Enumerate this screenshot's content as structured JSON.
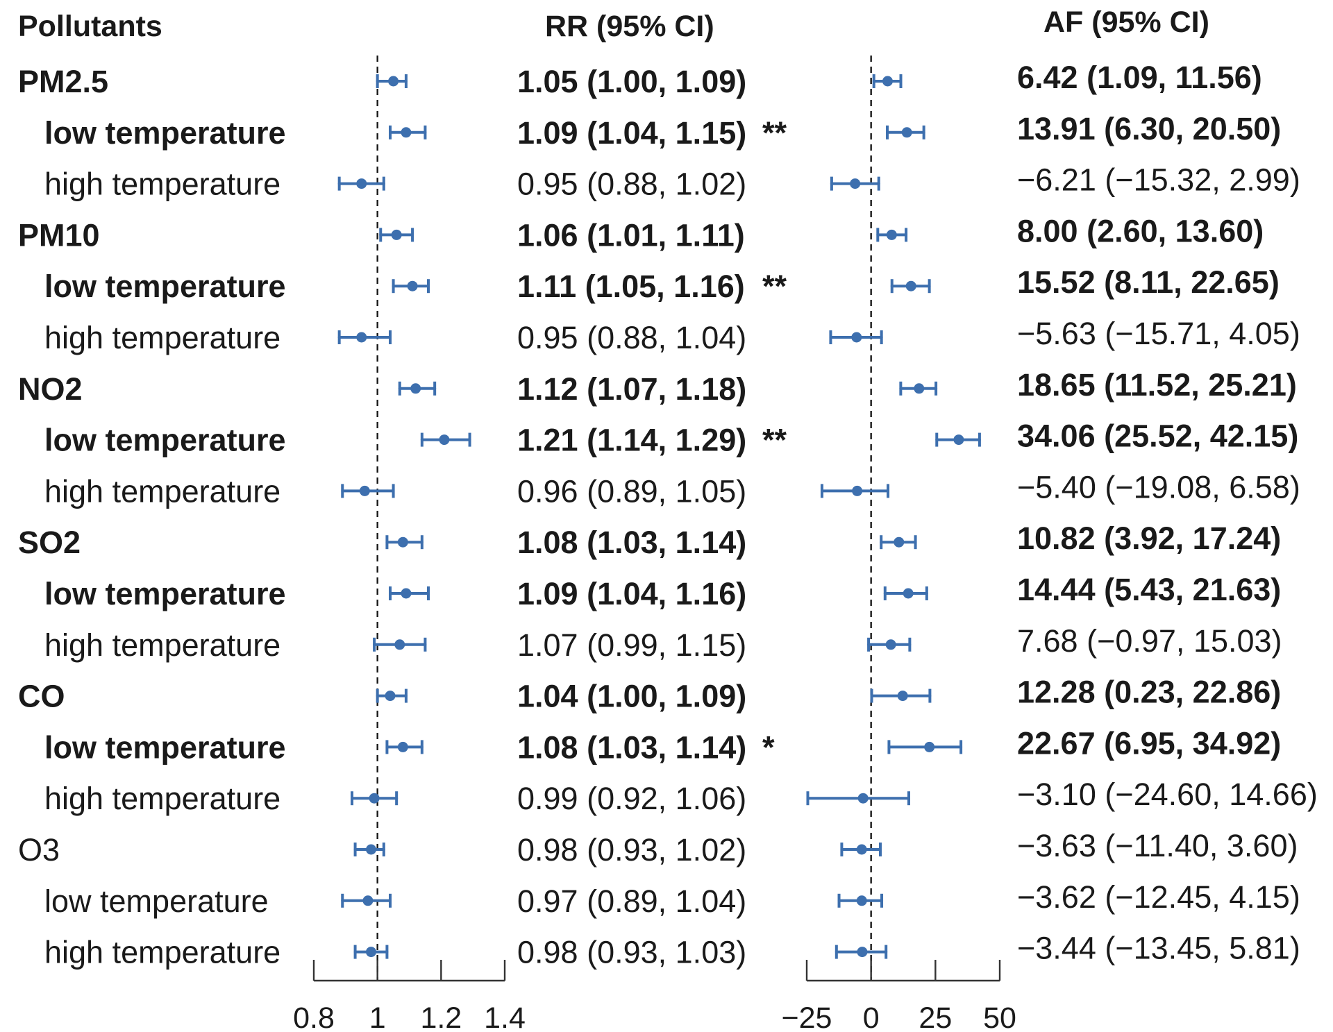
{
  "chart_data": {
    "type": "forest",
    "headers": {
      "label": "Pollutants",
      "rr": "RR (95% CI)",
      "af": "AF (95% CI)"
    },
    "rows": [
      {
        "label": "PM2.5",
        "indent": false,
        "bold": true,
        "rr": 1.05,
        "rr_lo": 1.0,
        "rr_hi": 1.09,
        "rr_text": "1.05 (1.00, 1.09)",
        "sig": "",
        "af": 6.42,
        "af_lo": 1.09,
        "af_hi": 11.56,
        "af_text": "6.42 (1.09, 11.56)",
        "af_bold": true
      },
      {
        "label": "low temperature",
        "indent": true,
        "bold": true,
        "rr": 1.09,
        "rr_lo": 1.04,
        "rr_hi": 1.15,
        "rr_text": "1.09 (1.04, 1.15)",
        "sig": "**",
        "af": 13.91,
        "af_lo": 6.3,
        "af_hi": 20.5,
        "af_text": "13.91 (6.30, 20.50)",
        "af_bold": true
      },
      {
        "label": "high temperature",
        "indent": true,
        "bold": false,
        "rr": 0.95,
        "rr_lo": 0.88,
        "rr_hi": 1.02,
        "rr_text": "0.95 (0.88, 1.02)",
        "sig": "",
        "af": -6.21,
        "af_lo": -15.32,
        "af_hi": 2.99,
        "af_text": "−6.21 (−15.32, 2.99)",
        "af_bold": false
      },
      {
        "label": "PM10",
        "indent": false,
        "bold": true,
        "rr": 1.06,
        "rr_lo": 1.01,
        "rr_hi": 1.11,
        "rr_text": "1.06 (1.01, 1.11)",
        "sig": "",
        "af": 8.0,
        "af_lo": 2.6,
        "af_hi": 13.6,
        "af_text": "8.00 (2.60, 13.60)",
        "af_bold": true
      },
      {
        "label": "low temperature",
        "indent": true,
        "bold": true,
        "rr": 1.11,
        "rr_lo": 1.05,
        "rr_hi": 1.16,
        "rr_text": "1.11 (1.05, 1.16)",
        "sig": "**",
        "af": 15.52,
        "af_lo": 8.11,
        "af_hi": 22.65,
        "af_text": "15.52 (8.11, 22.65)",
        "af_bold": true
      },
      {
        "label": "high temperature",
        "indent": true,
        "bold": false,
        "rr": 0.95,
        "rr_lo": 0.88,
        "rr_hi": 1.04,
        "rr_text": "0.95 (0.88, 1.04)",
        "sig": "",
        "af": -5.63,
        "af_lo": -15.71,
        "af_hi": 4.05,
        "af_text": "−5.63 (−15.71, 4.05)",
        "af_bold": false
      },
      {
        "label": "NO2",
        "indent": false,
        "bold": true,
        "rr": 1.12,
        "rr_lo": 1.07,
        "rr_hi": 1.18,
        "rr_text": "1.12 (1.07, 1.18)",
        "sig": "",
        "af": 18.65,
        "af_lo": 11.52,
        "af_hi": 25.21,
        "af_text": "18.65 (11.52, 25.21)",
        "af_bold": true
      },
      {
        "label": "low temperature",
        "indent": true,
        "bold": true,
        "rr": 1.21,
        "rr_lo": 1.14,
        "rr_hi": 1.29,
        "rr_text": "1.21 (1.14, 1.29)",
        "sig": "**",
        "af": 34.06,
        "af_lo": 25.52,
        "af_hi": 42.15,
        "af_text": "34.06 (25.52, 42.15)",
        "af_bold": true
      },
      {
        "label": "high temperature",
        "indent": true,
        "bold": false,
        "rr": 0.96,
        "rr_lo": 0.89,
        "rr_hi": 1.05,
        "rr_text": "0.96 (0.89, 1.05)",
        "sig": "",
        "af": -5.4,
        "af_lo": -19.08,
        "af_hi": 6.58,
        "af_text": "−5.40 (−19.08, 6.58)",
        "af_bold": false
      },
      {
        "label": "SO2",
        "indent": false,
        "bold": true,
        "rr": 1.08,
        "rr_lo": 1.03,
        "rr_hi": 1.14,
        "rr_text": "1.08 (1.03, 1.14)",
        "sig": "",
        "af": 10.82,
        "af_lo": 3.92,
        "af_hi": 17.24,
        "af_text": "10.82 (3.92, 17.24)",
        "af_bold": true
      },
      {
        "label": "low temperature",
        "indent": true,
        "bold": true,
        "rr": 1.09,
        "rr_lo": 1.04,
        "rr_hi": 1.16,
        "rr_text": "1.09 (1.04, 1.16)",
        "sig": "",
        "af": 14.44,
        "af_lo": 5.43,
        "af_hi": 21.63,
        "af_text": "14.44 (5.43, 21.63)",
        "af_bold": true
      },
      {
        "label": "high temperature",
        "indent": true,
        "bold": false,
        "rr": 1.07,
        "rr_lo": 0.99,
        "rr_hi": 1.15,
        "rr_text": "1.07 (0.99, 1.15)",
        "sig": "",
        "af": 7.68,
        "af_lo": -0.97,
        "af_hi": 15.03,
        "af_text": "7.68 (−0.97, 15.03)",
        "af_bold": false
      },
      {
        "label": "CO",
        "indent": false,
        "bold": true,
        "rr": 1.04,
        "rr_lo": 1.0,
        "rr_hi": 1.09,
        "rr_text": "1.04 (1.00, 1.09)",
        "sig": "",
        "af": 12.28,
        "af_lo": 0.23,
        "af_hi": 22.86,
        "af_text": "12.28 (0.23, 22.86)",
        "af_bold": true
      },
      {
        "label": "low temperature",
        "indent": true,
        "bold": true,
        "rr": 1.08,
        "rr_lo": 1.03,
        "rr_hi": 1.14,
        "rr_text": "1.08 (1.03, 1.14)",
        "sig": "*",
        "af": 22.67,
        "af_lo": 6.95,
        "af_hi": 34.92,
        "af_text": "22.67 (6.95, 34.92)",
        "af_bold": true
      },
      {
        "label": "high temperature",
        "indent": true,
        "bold": false,
        "rr": 0.99,
        "rr_lo": 0.92,
        "rr_hi": 1.06,
        "rr_text": "0.99 (0.92, 1.06)",
        "sig": "",
        "af": -3.1,
        "af_lo": -24.6,
        "af_hi": 14.66,
        "af_text": "−3.10 (−24.60, 14.66)",
        "af_bold": false
      },
      {
        "label": "O3",
        "indent": false,
        "bold": false,
        "rr": 0.98,
        "rr_lo": 0.93,
        "rr_hi": 1.02,
        "rr_text": "0.98 (0.93, 1.02)",
        "sig": "",
        "af": -3.63,
        "af_lo": -11.4,
        "af_hi": 3.6,
        "af_text": "−3.63 (−11.40, 3.60)",
        "af_bold": false
      },
      {
        "label": "low temperature",
        "indent": true,
        "bold": false,
        "rr": 0.97,
        "rr_lo": 0.89,
        "rr_hi": 1.04,
        "rr_text": "0.97 (0.89, 1.04)",
        "sig": "",
        "af": -3.62,
        "af_lo": -12.45,
        "af_hi": 4.15,
        "af_text": "−3.62 (−12.45, 4.15)",
        "af_bold": false
      },
      {
        "label": "high temperature",
        "indent": true,
        "bold": false,
        "rr": 0.98,
        "rr_lo": 0.93,
        "rr_hi": 1.03,
        "rr_text": "0.98 (0.93, 1.03)",
        "sig": "",
        "af": -3.44,
        "af_lo": -13.45,
        "af_hi": 5.81,
        "af_text": "−3.44 (−13.45, 5.81)",
        "af_bold": false
      }
    ],
    "rr_axis": {
      "range": [
        0.8,
        1.4
      ],
      "ticks": [
        0.8,
        1.0,
        1.2,
        1.4
      ],
      "tick_labels": [
        "0.8",
        "1",
        "1.2",
        "1.4"
      ],
      "reference": 1
    },
    "af_axis": {
      "range": [
        -25,
        50
      ],
      "ticks": [
        -25,
        0,
        25,
        50
      ],
      "tick_labels": [
        "−25",
        "0",
        "25",
        "50"
      ],
      "reference": 0
    },
    "colors": {
      "marker": "#3d6fae",
      "text": "#1a1a1a"
    }
  }
}
